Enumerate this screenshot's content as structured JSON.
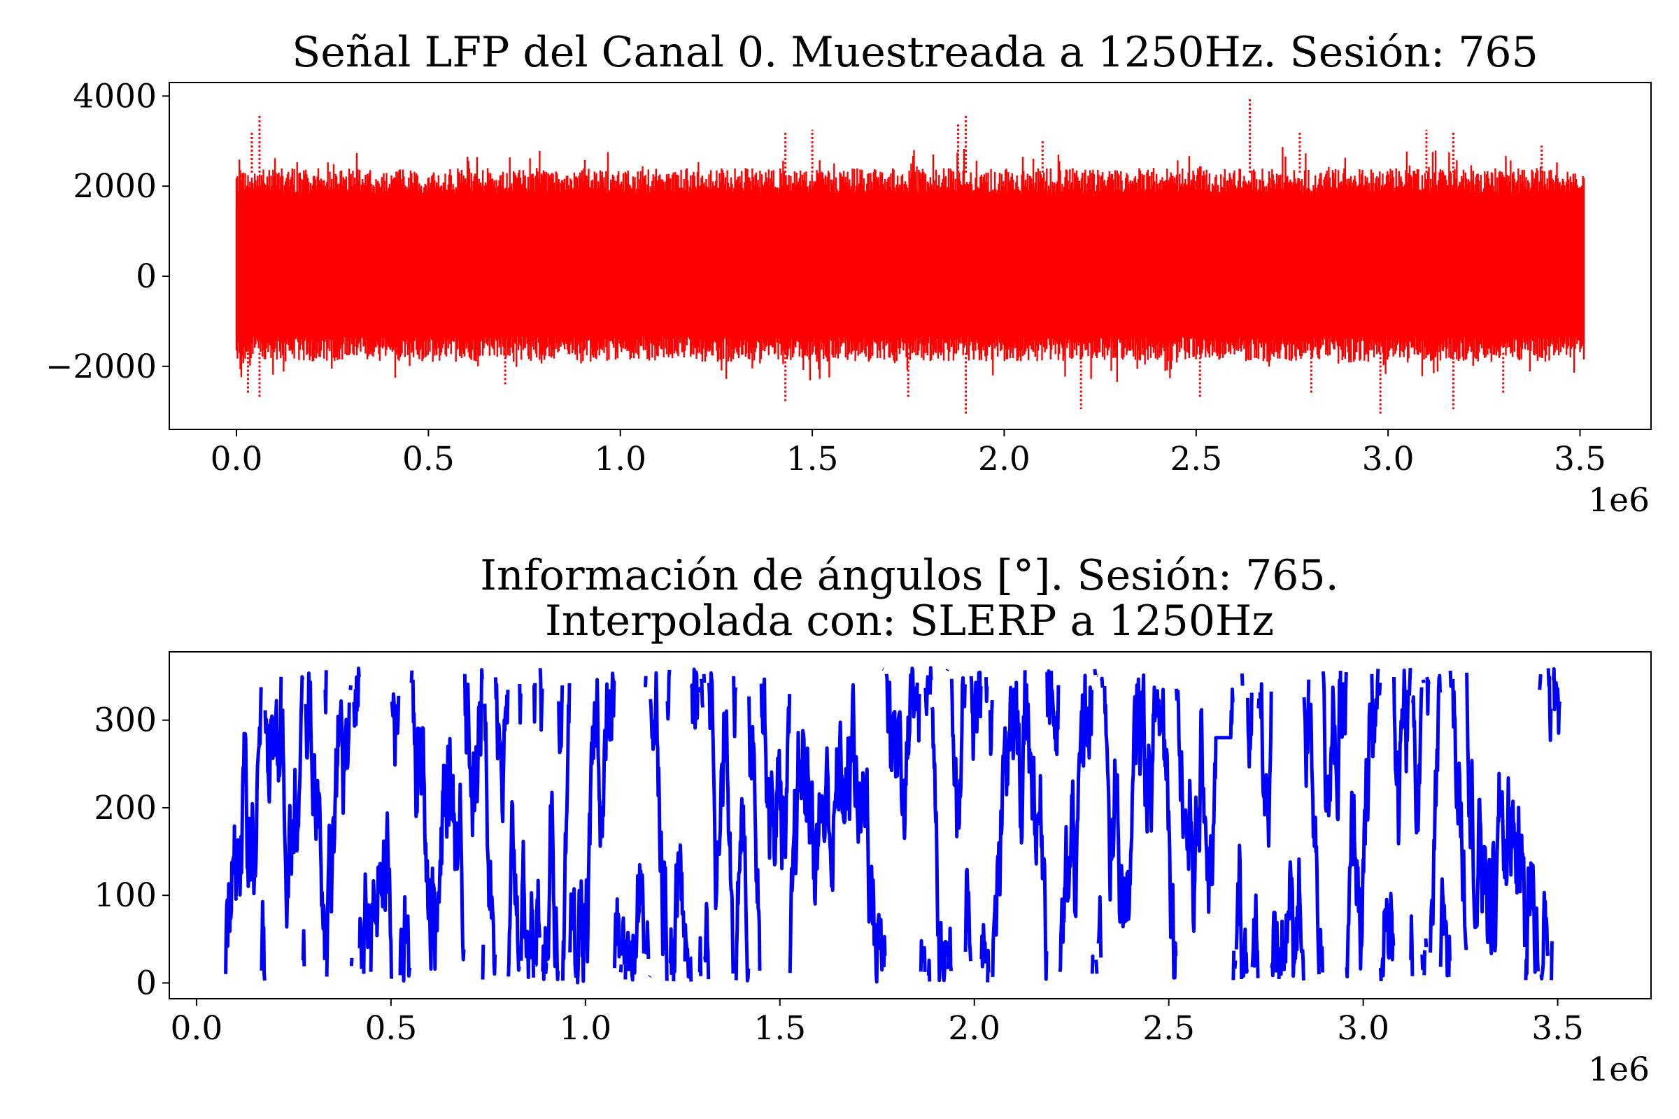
{
  "chart_data": [
    {
      "type": "scatter",
      "title": "Señal LFP del Canal 0. Muestreada a 1250Hz. Sesión: 765",
      "x_tick_labels": [
        "0.0",
        "0.5",
        "1.0",
        "1.5",
        "2.0",
        "2.5",
        "3.0",
        "3.5"
      ],
      "x_ticks": [
        0,
        500000,
        1000000,
        1500000,
        2000000,
        2500000,
        3000000,
        3500000
      ],
      "x_offset_label": "1e6",
      "y_tick_labels": [
        "−2000",
        "0",
        "2000",
        "4000"
      ],
      "y_ticks": [
        -2000,
        0,
        2000,
        4000
      ],
      "xlim": [
        -175000,
        3685000
      ],
      "ylim": [
        -3400,
        4300
      ],
      "x_range": [
        0,
        3510000
      ],
      "y_band": [
        -1500,
        2000
      ],
      "spikes": [
        {
          "x": 60000,
          "y": 3600
        },
        {
          "x": 40000,
          "y": 3200
        },
        {
          "x": 1430000,
          "y": 3200
        },
        {
          "x": 1500000,
          "y": 3250
        },
        {
          "x": 1880000,
          "y": 3400
        },
        {
          "x": 1900000,
          "y": 3600
        },
        {
          "x": 2100000,
          "y": 3000
        },
        {
          "x": 2640000,
          "y": 3950
        },
        {
          "x": 2770000,
          "y": 3200
        },
        {
          "x": 3100000,
          "y": 3250
        },
        {
          "x": 3170000,
          "y": 3200
        },
        {
          "x": 3400000,
          "y": 2900
        },
        {
          "x": 30000,
          "y": -2600
        },
        {
          "x": 60000,
          "y": -2700
        },
        {
          "x": 700000,
          "y": -2400
        },
        {
          "x": 1430000,
          "y": -2800
        },
        {
          "x": 1750000,
          "y": -2700
        },
        {
          "x": 1900000,
          "y": -3050
        },
        {
          "x": 2200000,
          "y": -2950
        },
        {
          "x": 2510000,
          "y": -2700
        },
        {
          "x": 2980000,
          "y": -3050
        },
        {
          "x": 3170000,
          "y": -2950
        },
        {
          "x": 2800000,
          "y": -2600
        },
        {
          "x": 3300000,
          "y": -2600
        }
      ],
      "series": [
        {
          "color": "#ff0000",
          "marker": "dot"
        }
      ],
      "grid": false
    },
    {
      "type": "line",
      "title_line1": "Información de ángulos [°]. Sesión: 765.",
      "title_line2": "Interpolada con: SLERP a 1250Hz",
      "x_tick_labels": [
        "0.0",
        "0.5",
        "1.0",
        "1.5",
        "2.0",
        "2.5",
        "3.0",
        "3.5"
      ],
      "x_ticks": [
        0,
        500000,
        1000000,
        1500000,
        2000000,
        2500000,
        3000000,
        3500000
      ],
      "x_offset_label": "1e6",
      "y_tick_labels": [
        "0",
        "100",
        "200",
        "300"
      ],
      "y_ticks": [
        0,
        100,
        200,
        300
      ],
      "xlim": [
        -70000,
        3740000
      ],
      "ylim": [
        -18,
        378
      ],
      "x_range": [
        75000,
        3505000
      ],
      "y_range": [
        0,
        360
      ],
      "flat_segment": {
        "x": [
          2620000,
          2660000
        ],
        "y": 280
      },
      "series": [
        {
          "color": "#0000ff",
          "width": 5
        }
      ],
      "grid": false
    }
  ]
}
